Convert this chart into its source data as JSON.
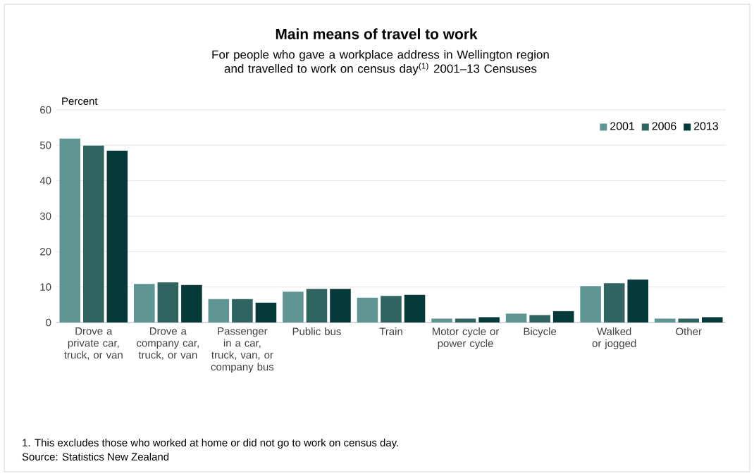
{
  "chart_data": {
    "type": "bar",
    "title": "Main means of travel to work",
    "subtitle": "For people who gave a workplace address in Wellington region and travelled to work on census day$^{(1)}$ 2001–13 Censuses",
    "ylabel": "Percent",
    "categories": [
      "Drove a private car, truck, or van",
      "Drove a company car, truck, or van",
      "Passenger in a car, truck, van, or company bus",
      "Public bus",
      "Train",
      "Motor cycle or power cycle",
      "Bicycle",
      "Walked or jogged",
      "Other"
    ],
    "series": [
      {
        "name": "2001",
        "color": "#5f9693",
        "values": [
          51.9,
          10.9,
          6.6,
          8.7,
          7.0,
          1.1,
          2.5,
          10.3,
          1.1
        ]
      },
      {
        "name": "2006",
        "color": "#2f6461",
        "values": [
          49.9,
          11.3,
          6.6,
          9.5,
          7.5,
          1.1,
          2.1,
          11.1,
          1.1
        ]
      },
      {
        "name": "2013",
        "color": "#06393a",
        "values": [
          48.5,
          10.6,
          5.6,
          9.5,
          7.8,
          1.5,
          3.2,
          12.1,
          1.5
        ]
      }
    ],
    "ylim": [
      0,
      60
    ],
    "yticks": [
      0,
      10,
      20,
      30,
      40,
      50,
      60
    ],
    "grid": "y",
    "legend": "top right",
    "annotations": [
      "1. This excludes those who worked at home or did not go to work on census day.",
      "Source: Statistics New Zealand"
    ]
  }
}
